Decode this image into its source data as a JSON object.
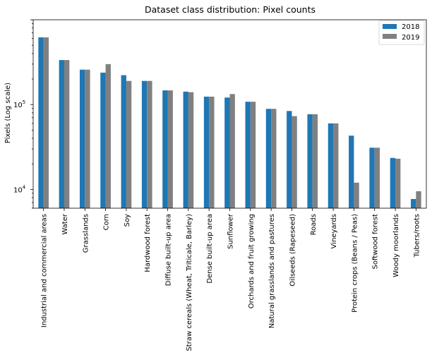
{
  "chart_data": {
    "type": "bar",
    "title": "Dataset class distribution: Pixel counts",
    "xlabel": "",
    "ylabel": "Pixels (Log scale)",
    "yscale": "log",
    "ylim": [
      6000,
      1000000
    ],
    "y_ticks": [
      {
        "value": 10000,
        "base": "10",
        "exp": "4"
      },
      {
        "value": 100000,
        "base": "10",
        "exp": "5"
      }
    ],
    "grid": false,
    "legend_position": "top-right",
    "categories": [
      "Industrial and commercial areas",
      "Water",
      "Grasslands",
      "Corn",
      "Soy",
      "Hardwood forest",
      "Diffuse built-up area",
      "Straw cereals (Wheat, Triticale, Barley)",
      "Dense built-up area",
      "Sunflower",
      "Orchards and fruit growing",
      "Natural grasslands and pastures",
      "Oilseeds (Rapeseed)",
      "Roads",
      "Vineyards",
      "Protein crops (Beans / Peas)",
      "Softwood forest",
      "Woody moorlands",
      "Tubers/roots"
    ],
    "series": [
      {
        "name": "2018",
        "color": "#1f77b4",
        "values": [
          620000,
          335000,
          258000,
          238000,
          222000,
          190000,
          147000,
          142000,
          124000,
          121000,
          108000,
          89000,
          84000,
          77000,
          60000,
          43000,
          31000,
          23500,
          7700
        ]
      },
      {
        "name": "2019",
        "color": "#808080",
        "values": [
          620000,
          335000,
          258000,
          300000,
          190000,
          190000,
          147000,
          140000,
          124000,
          133000,
          108000,
          89000,
          73000,
          77000,
          60000,
          12000,
          31000,
          23000,
          9500
        ]
      }
    ]
  }
}
